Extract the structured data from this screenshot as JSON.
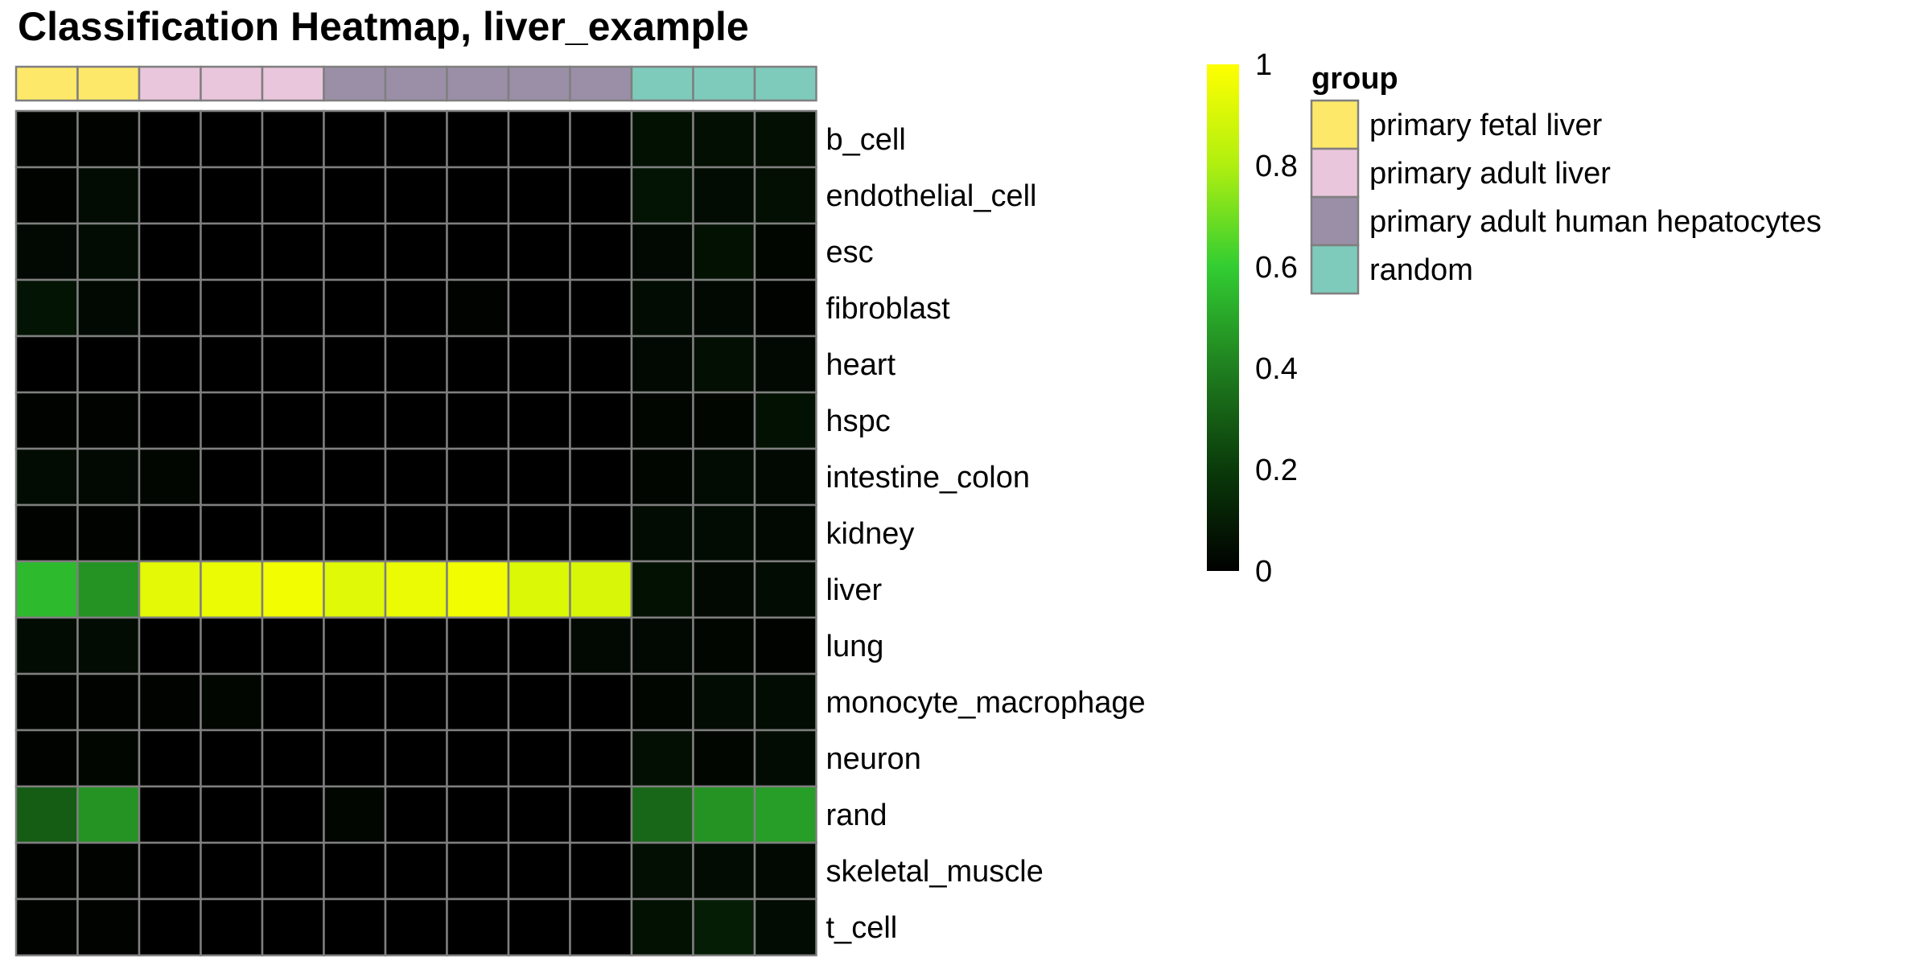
{
  "title": "Classification Heatmap, liver_example",
  "chart_data": {
    "type": "heatmap",
    "title": "Classification Heatmap, liver_example",
    "rows": [
      "b_cell",
      "endothelial_cell",
      "esc",
      "fibroblast",
      "heart",
      "hspc",
      "intestine_colon",
      "kidney",
      "liver",
      "lung",
      "monocyte_macrophage",
      "neuron",
      "rand",
      "skeletal_muscle",
      "t_cell"
    ],
    "column_groups": [
      "primary fetal liver",
      "primary fetal liver",
      "primary adult liver",
      "primary adult liver",
      "primary adult liver",
      "primary adult human hepatocytes",
      "primary adult human hepatocytes",
      "primary adult human hepatocytes",
      "primary adult human hepatocytes",
      "primary adult human hepatocytes",
      "random",
      "random",
      "random"
    ],
    "values": [
      [
        0.01,
        0.01,
        0.0,
        0.0,
        0.0,
        0.0,
        0.0,
        0.0,
        0.0,
        0.0,
        0.06,
        0.05,
        0.05
      ],
      [
        0.01,
        0.04,
        0.0,
        0.0,
        0.0,
        0.0,
        0.0,
        0.0,
        0.0,
        0.0,
        0.07,
        0.04,
        0.05
      ],
      [
        0.03,
        0.04,
        0.0,
        0.0,
        0.0,
        0.0,
        0.0,
        0.0,
        0.0,
        0.0,
        0.03,
        0.06,
        0.02
      ],
      [
        0.07,
        0.03,
        0.0,
        0.0,
        0.0,
        0.0,
        0.0,
        0.01,
        0.0,
        0.0,
        0.04,
        0.03,
        0.01
      ],
      [
        0.0,
        0.0,
        0.0,
        0.0,
        0.0,
        0.0,
        0.0,
        0.0,
        0.0,
        0.0,
        0.03,
        0.05,
        0.03
      ],
      [
        0.01,
        0.01,
        0.0,
        0.0,
        0.0,
        0.0,
        0.0,
        0.0,
        0.0,
        0.0,
        0.02,
        0.02,
        0.06
      ],
      [
        0.04,
        0.03,
        0.02,
        0.0,
        0.0,
        0.0,
        0.0,
        0.0,
        0.0,
        0.0,
        0.02,
        0.04,
        0.03
      ],
      [
        0.01,
        0.01,
        0.0,
        0.0,
        0.0,
        0.0,
        0.0,
        0.0,
        0.0,
        0.0,
        0.04,
        0.04,
        0.03
      ],
      [
        0.55,
        0.45,
        0.93,
        0.95,
        0.97,
        0.92,
        0.95,
        0.97,
        0.91,
        0.9,
        0.06,
        0.03,
        0.04
      ],
      [
        0.04,
        0.04,
        0.0,
        0.0,
        0.0,
        0.0,
        0.0,
        0.0,
        0.0,
        0.03,
        0.03,
        0.02,
        0.01
      ],
      [
        0.01,
        0.01,
        0.01,
        0.02,
        0.0,
        0.0,
        0.0,
        0.0,
        0.0,
        0.0,
        0.02,
        0.04,
        0.04
      ],
      [
        0.01,
        0.02,
        0.0,
        0.0,
        0.0,
        0.0,
        0.0,
        0.0,
        0.0,
        0.0,
        0.05,
        0.02,
        0.04
      ],
      [
        0.3,
        0.45,
        0.0,
        0.0,
        0.0,
        0.02,
        0.0,
        0.0,
        0.0,
        0.0,
        0.33,
        0.45,
        0.48
      ],
      [
        0.01,
        0.01,
        0.0,
        0.0,
        0.0,
        0.0,
        0.0,
        0.0,
        0.0,
        0.0,
        0.05,
        0.04,
        0.03
      ],
      [
        0.01,
        0.01,
        0.0,
        0.0,
        0.0,
        0.0,
        0.0,
        0.0,
        0.0,
        0.0,
        0.06,
        0.1,
        0.04
      ]
    ],
    "color_scale": {
      "min": 0,
      "max": 1,
      "stops": [
        [
          0,
          "#000000"
        ],
        [
          0.2,
          "#0a3a0a"
        ],
        [
          0.4,
          "#1f7f1f"
        ],
        [
          0.6,
          "#32cd32"
        ],
        [
          0.8,
          "#b0ef10"
        ],
        [
          1,
          "#ffff00"
        ]
      ],
      "ticks": [
        "0",
        "0.2",
        "0.4",
        "0.6",
        "0.8",
        "1"
      ]
    },
    "legend": {
      "title": "group",
      "placement": "right",
      "entries": [
        {
          "label": "primary fetal liver",
          "color": "#fde869"
        },
        {
          "label": "primary adult liver",
          "color": "#eac6dc"
        },
        {
          "label": "primary adult human hepatocytes",
          "color": "#9a8fa6"
        },
        {
          "label": "random",
          "color": "#7ecbbc"
        }
      ]
    },
    "grid": true
  }
}
